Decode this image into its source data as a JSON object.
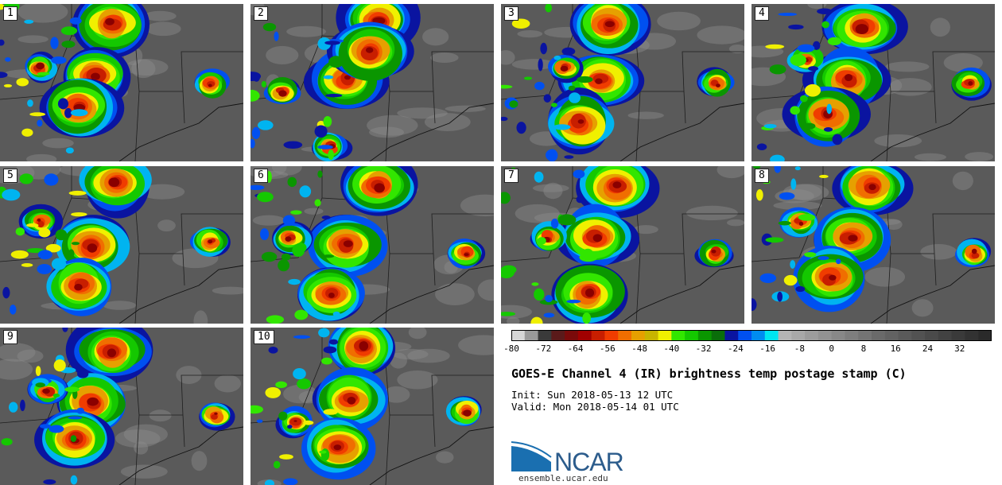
{
  "figure": {
    "title": "GOES-E Channel 4 (IR) brightness temp postage stamp (C)",
    "init_text": "Init: Sun 2018-05-13 12 UTC",
    "valid_text": "Valid: Mon 2018-05-14 01 UTC",
    "org_name": "NCAR",
    "url": "ensemble.ucar.edu"
  },
  "panels": [
    {
      "label": "1"
    },
    {
      "label": "2"
    },
    {
      "label": "3"
    },
    {
      "label": "4"
    },
    {
      "label": "5"
    },
    {
      "label": "6"
    },
    {
      "label": "7"
    },
    {
      "label": "8"
    },
    {
      "label": "9"
    },
    {
      "label": "10"
    }
  ],
  "colorbar": {
    "ticks": [
      "-80",
      "-72",
      "-64",
      "-56",
      "-48",
      "-40",
      "-32",
      "-24",
      "-16",
      "-8",
      "0",
      "8",
      "16",
      "24",
      "32"
    ],
    "colors": [
      "#d6d6d6",
      "#9a9a9a",
      "#3a3a3a",
      "#5a1a1a",
      "#7a0a0a",
      "#a00000",
      "#c81e00",
      "#f03c00",
      "#f06e00",
      "#e6a000",
      "#c8b400",
      "#f0f000",
      "#32e600",
      "#14c800",
      "#0a9600",
      "#0a6e0a",
      "#0a14a0",
      "#0050f0",
      "#008cf0",
      "#00e6f0",
      "#b4b4b4",
      "#a8a8a8",
      "#9c9c9c",
      "#929292",
      "#888888",
      "#7e7e7e",
      "#747474",
      "#6a6a6a",
      "#626262",
      "#5a5a5a",
      "#525252",
      "#4a4a4a",
      "#424242",
      "#3a3a3a",
      "#323232",
      "#2a2a2a"
    ]
  },
  "chart_data": {
    "type": "heatmap",
    "title": "GOES-E Channel 4 (IR) brightness temp postage stamp (C)",
    "colorbar_range": [
      -80,
      40
    ],
    "colorbar_ticks": [
      -80,
      -72,
      -64,
      -56,
      -48,
      -40,
      -32,
      -24,
      -16,
      -8,
      0,
      8,
      16,
      24,
      32
    ],
    "members": 10
  }
}
